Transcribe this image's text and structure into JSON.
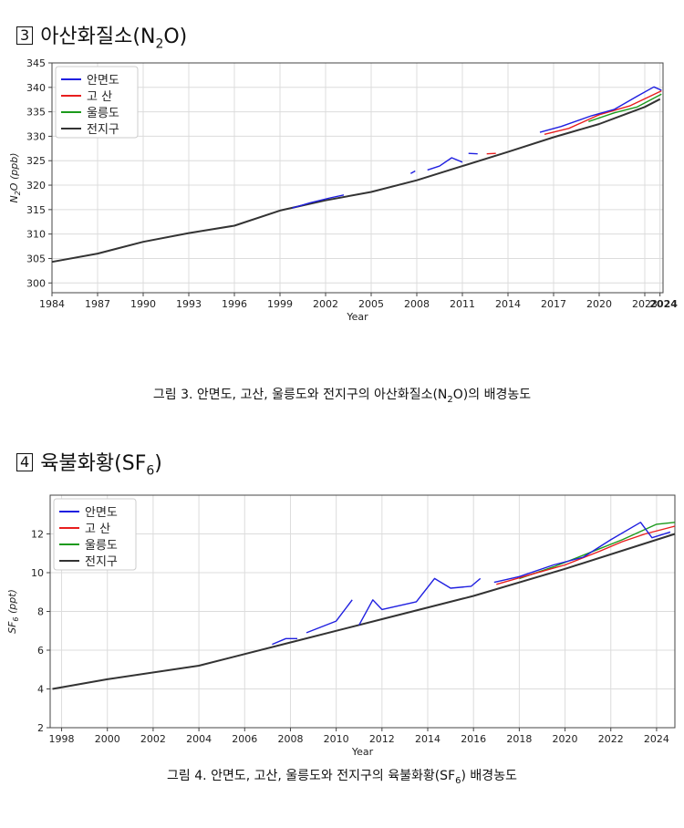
{
  "sections": [
    {
      "number": "3",
      "title": "아산화질소(N",
      "sub": "2",
      "title_end": "O)",
      "caption_pre": "그림 3. 안면도, 고산, 울릉도와 전지구의 아산화질소(N",
      "caption_sub": "2",
      "caption_post": "O)의 배경농도"
    },
    {
      "number": "4",
      "title": "육불화황(SF",
      "sub": "6",
      "title_end": ")",
      "caption_pre": "그림 4. 안면도, 고산, 울릉도와 전지구의 육불화황(SF",
      "caption_sub": "6",
      "caption_post": ") 배경농도"
    }
  ],
  "colors": {
    "anmyeondo": "#1f1fe0",
    "gosan": "#e81e1e",
    "ulleungdo": "#1c9a1c",
    "global": "#333333"
  },
  "chart_data": [
    {
      "type": "line",
      "xlabel": "Year",
      "ylabel_main": "N",
      "ylabel_sub": "2",
      "ylabel_end": "O (ppb)",
      "xlim": [
        1984,
        2024.2
      ],
      "ylim": [
        298,
        345
      ],
      "xticks": [
        1984,
        1987,
        1990,
        1993,
        1996,
        1999,
        2002,
        2005,
        2008,
        2011,
        2014,
        2017,
        2020,
        2023,
        2024
      ],
      "yticks": [
        300,
        305,
        310,
        315,
        320,
        325,
        330,
        335,
        340,
        345
      ],
      "legend": [
        "안면도",
        "고  산",
        "울릉도",
        "전지구"
      ],
      "series": [
        {
          "name": "전지구",
          "key": "global",
          "points": [
            [
              1984,
              304.3
            ],
            [
              1987,
              306
            ],
            [
              1990,
              308.4
            ],
            [
              1993,
              310.2
            ],
            [
              1996,
              311.7
            ],
            [
              1999,
              314.8
            ],
            [
              2002,
              316.9
            ],
            [
              2005,
              318.6
            ],
            [
              2008,
              321
            ],
            [
              2011,
              323.9
            ],
            [
              2014,
              326.8
            ],
            [
              2017,
              329.8
            ],
            [
              2020,
              332.5
            ],
            [
              2023,
              336
            ],
            [
              2024,
              337.6
            ]
          ]
        },
        {
          "name": "안면도",
          "key": "anmyeondo",
          "segments": [
            [
              [
                1999.8,
                315.3
              ],
              [
                2001,
                316.4
              ],
              [
                2002.3,
                317.4
              ],
              [
                2003.2,
                318
              ]
            ],
            [
              [
                2007.6,
                322.4
              ],
              [
                2007.9,
                322.9
              ]
            ],
            [
              [
                2008.7,
                323.1
              ],
              [
                2009.5,
                323.9
              ],
              [
                2010.3,
                325.6
              ],
              [
                2011,
                324.7
              ]
            ],
            [
              [
                2011.4,
                326.5
              ],
              [
                2012,
                326.4
              ]
            ],
            [
              [
                2016.1,
                330.8
              ],
              [
                2017.5,
                332
              ],
              [
                2019.5,
                334.2
              ],
              [
                2021,
                335.5
              ],
              [
                2022.5,
                338.2
              ],
              [
                2023.6,
                340.1
              ],
              [
                2024.1,
                339.4
              ]
            ]
          ]
        },
        {
          "name": "고  산",
          "key": "gosan",
          "segments": [
            [
              [
                2012.6,
                326.4
              ],
              [
                2013.2,
                326.5
              ]
            ],
            [
              [
                2016.4,
                330.4
              ],
              [
                2018,
                331.6
              ],
              [
                2020,
                334.4
              ],
              [
                2022,
                336.2
              ],
              [
                2024.1,
                339.3
              ]
            ]
          ]
        },
        {
          "name": "울릉도",
          "key": "ulleungdo",
          "segments": [
            [
              [
                2019.3,
                333
              ],
              [
                2021,
                334.8
              ],
              [
                2022.5,
                336
              ],
              [
                2024.1,
                338.6
              ]
            ]
          ]
        }
      ]
    },
    {
      "type": "line",
      "xlabel": "Year",
      "ylabel_main": "SF",
      "ylabel_sub": "6",
      "ylabel_end": " (ppt)",
      "xlim": [
        1997.5,
        2024.8
      ],
      "ylim": [
        2,
        14
      ],
      "xticks": [
        1998,
        2000,
        2002,
        2004,
        2006,
        2008,
        2010,
        2012,
        2014,
        2016,
        2018,
        2020,
        2022,
        2024
      ],
      "yticks": [
        2,
        4,
        6,
        8,
        10,
        12
      ],
      "legend": [
        "안면도",
        "고  산",
        "울릉도",
        "전지구"
      ],
      "series": [
        {
          "name": "전지구",
          "key": "global",
          "points": [
            [
              1997.6,
              4
            ],
            [
              2000,
              4.5
            ],
            [
              2004,
              5.2
            ],
            [
              2008,
              6.4
            ],
            [
              2012,
              7.6
            ],
            [
              2016,
              8.8
            ],
            [
              2020,
              10.2
            ],
            [
              2024.8,
              12
            ]
          ]
        },
        {
          "name": "안면도",
          "key": "anmyeondo",
          "segments": [
            [
              [
                2007.2,
                6.3
              ],
              [
                2007.8,
                6.6
              ],
              [
                2008.3,
                6.6
              ]
            ],
            [
              [
                2008.7,
                6.9
              ],
              [
                2010,
                7.5
              ],
              [
                2010.7,
                8.6
              ]
            ],
            [
              [
                2011,
                7.3
              ],
              [
                2011.6,
                8.6
              ],
              [
                2012,
                8.1
              ],
              [
                2013.5,
                8.5
              ],
              [
                2014.3,
                9.7
              ],
              [
                2015,
                9.2
              ],
              [
                2015.9,
                9.3
              ],
              [
                2016.3,
                9.7
              ]
            ],
            [
              [
                2016.9,
                9.5
              ],
              [
                2018,
                9.8
              ],
              [
                2019.5,
                10.4
              ],
              [
                2020.8,
                10.8
              ],
              [
                2022,
                11.7
              ],
              [
                2023.3,
                12.6
              ],
              [
                2023.8,
                11.8
              ],
              [
                2024.6,
                12.1
              ]
            ]
          ]
        },
        {
          "name": "고  산",
          "key": "gosan",
          "segments": [
            [
              [
                2017,
                9.4
              ],
              [
                2018.5,
                9.9
              ],
              [
                2020,
                10.4
              ],
              [
                2021.5,
                11.1
              ],
              [
                2022.5,
                11.6
              ],
              [
                2023.5,
                12
              ],
              [
                2024.8,
                12.4
              ]
            ]
          ]
        },
        {
          "name": "울릉도",
          "key": "ulleungdo",
          "segments": [
            [
              [
                2018,
                9.7
              ],
              [
                2019.5,
                10.3
              ],
              [
                2021,
                11
              ],
              [
                2022.5,
                11.7
              ],
              [
                2024,
                12.5
              ],
              [
                2024.8,
                12.6
              ]
            ]
          ]
        }
      ]
    }
  ]
}
